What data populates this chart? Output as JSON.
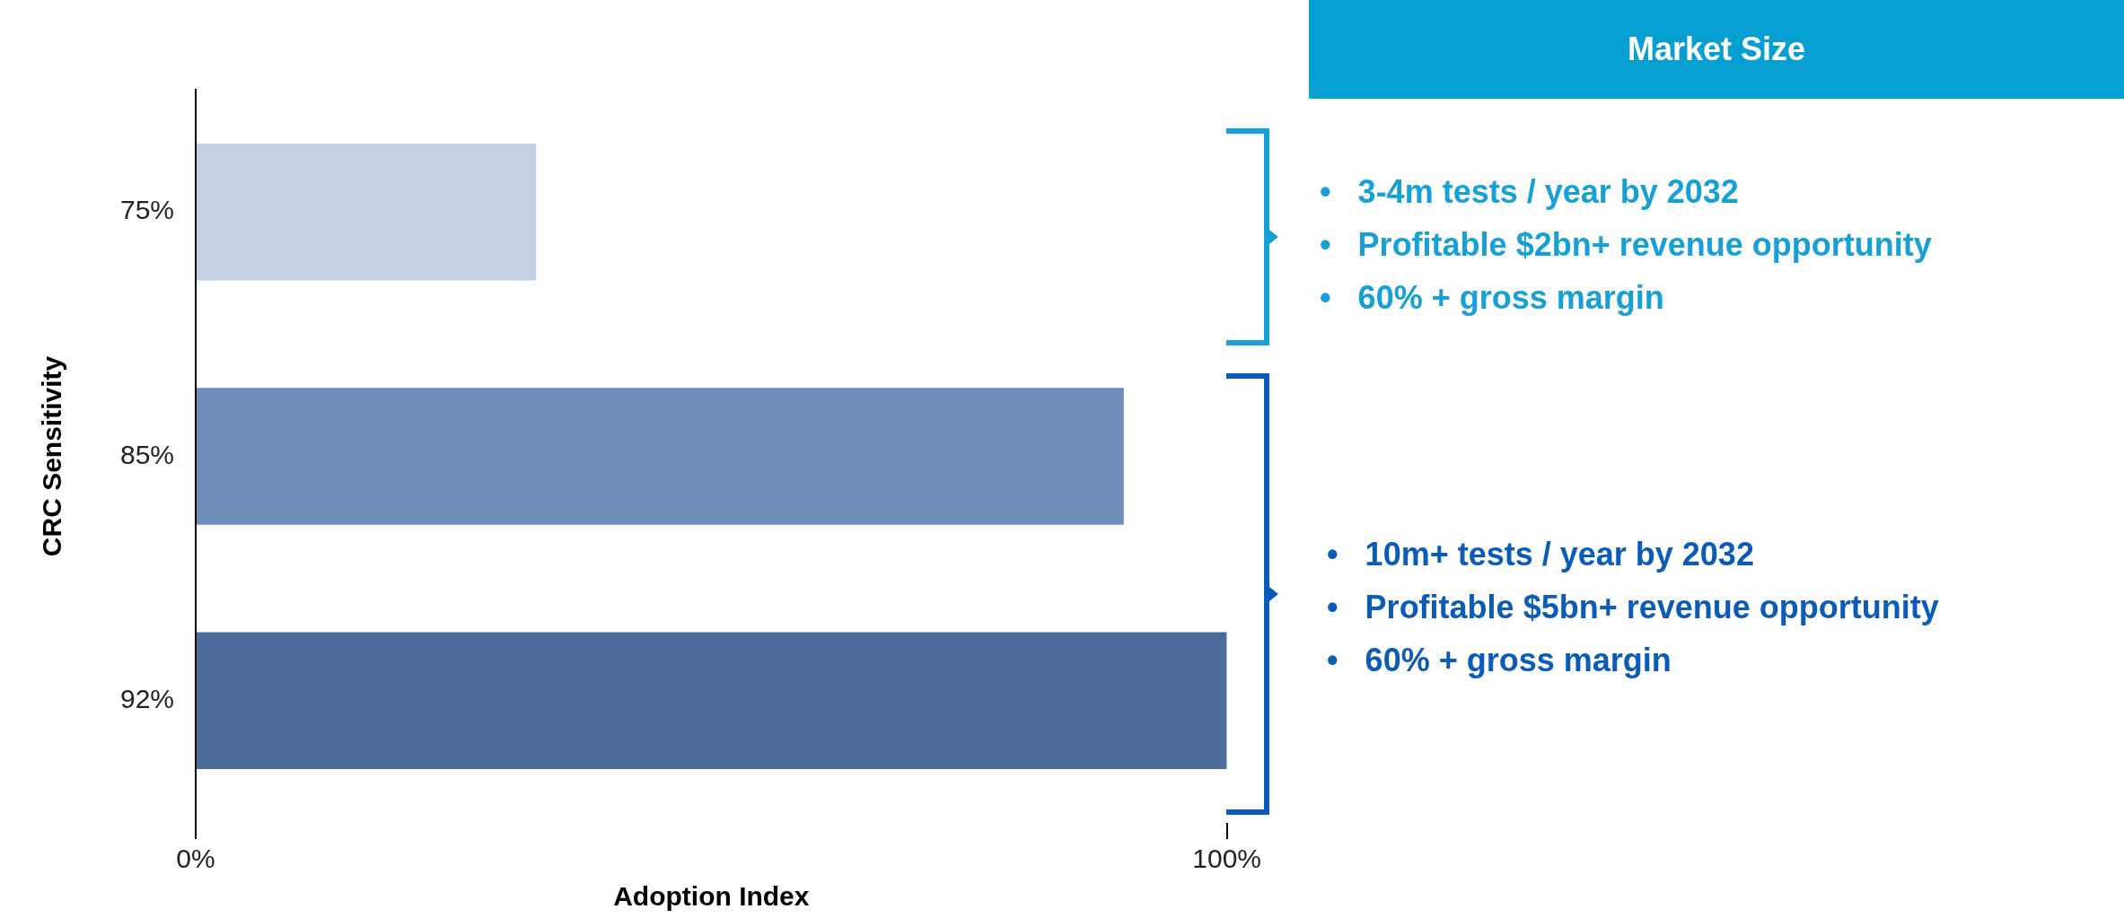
{
  "chart_data": {
    "type": "bar",
    "orientation": "horizontal",
    "categories": [
      "75%",
      "85%",
      "92%"
    ],
    "values": [
      33,
      90,
      100
    ],
    "colors": [
      "#c5d0e3",
      "#6e8eb9",
      "#4a6c9b"
    ],
    "xlim": [
      0,
      100
    ],
    "xticks": [
      {
        "value": 0,
        "label": "0%"
      },
      {
        "value": 100,
        "label": "100%"
      }
    ],
    "xlabel": "Adoption Index",
    "ylabel": "CRC Sensitivity",
    "grid": false,
    "legend": false,
    "annotations": [
      "Market Size",
      "•   3-4m tests / year by 2032",
      "•   Profitable $2bn+ revenue opportunity",
      "•   60% + gross margin",
      "•   10m+ tests / year by 2032",
      "•   Profitable $5bn+ revenue opportunity",
      "•   60% + gross margin"
    ]
  }
}
